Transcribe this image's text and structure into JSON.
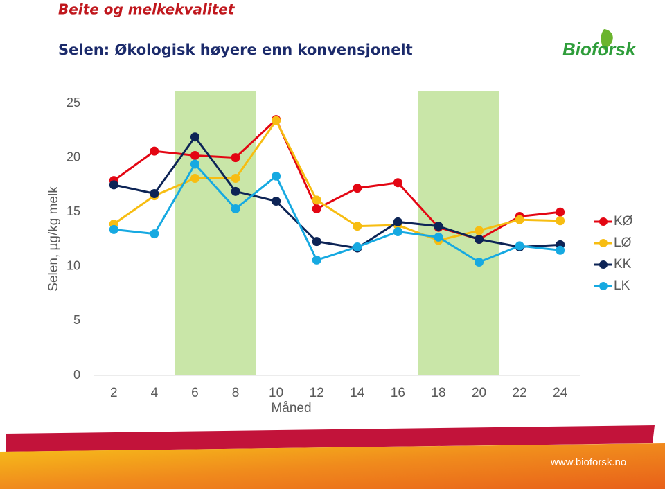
{
  "header": {
    "kicker": "Beite og melkekvalitet",
    "title": "Selen: Økologisk høyere enn konvensjonelt",
    "logo": "Bioforsk"
  },
  "footer": {
    "url": "www.bioforsk.no"
  },
  "chart_data": {
    "type": "line",
    "y_label": "Selen, µg/kg melk",
    "x_label": "Måned",
    "x": [
      2,
      4,
      6,
      8,
      10,
      12,
      14,
      16,
      18,
      20,
      22,
      24
    ],
    "xlim": [
      1,
      25
    ],
    "xticks": [
      2,
      4,
      6,
      8,
      10,
      12,
      14,
      16,
      18,
      20,
      22,
      24
    ],
    "ylim": [
      0,
      25
    ],
    "yticks": [
      0,
      5,
      10,
      15,
      20,
      25
    ],
    "grid": false,
    "legend": "right",
    "shaded_ranges": [
      [
        5,
        9
      ],
      [
        17,
        21
      ]
    ],
    "shade_color": "#c9e6a8",
    "series": [
      {
        "name": "KØ",
        "color": "#e30613",
        "values": [
          17.9,
          20.6,
          20.2,
          20.0,
          23.5,
          15.3,
          17.2,
          17.7,
          13.6,
          12.5,
          14.6,
          15.0
        ]
      },
      {
        "name": "LØ",
        "color": "#f7bd12",
        "values": [
          13.9,
          16.5,
          18.1,
          18.1,
          23.4,
          16.1,
          13.7,
          13.8,
          12.4,
          13.3,
          14.3,
          14.2
        ]
      },
      {
        "name": "KK",
        "color": "#0d2456",
        "values": [
          17.5,
          16.7,
          21.9,
          16.9,
          16.0,
          12.3,
          11.7,
          14.1,
          13.7,
          12.5,
          11.8,
          12.0
        ]
      },
      {
        "name": "LK",
        "color": "#16a9e1",
        "values": [
          13.4,
          13.0,
          19.4,
          15.3,
          18.3,
          10.6,
          11.8,
          13.2,
          12.7,
          10.4,
          11.9,
          11.5
        ]
      }
    ]
  }
}
